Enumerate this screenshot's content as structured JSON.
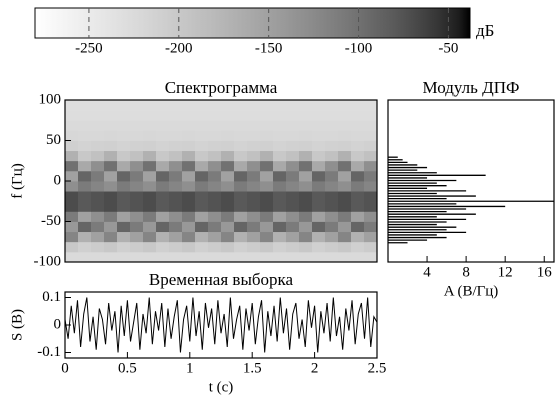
{
  "chart_data": [
    {
      "type": "colorbar",
      "colormap": "gray_r",
      "xlim": [
        -280,
        -38
      ],
      "xticks": [
        -250,
        -200,
        -150,
        -100,
        -50
      ],
      "label": "дБ"
    },
    {
      "type": "heatmap",
      "title": "Спектрограмма",
      "ylabel": "f (Гц)",
      "xlim": [
        0,
        2.5
      ],
      "ylim": [
        -100,
        100
      ],
      "yticks": [
        -100,
        -50,
        0,
        50,
        100
      ],
      "z": [
        [
          -225,
          -225,
          -225,
          -225,
          -225,
          -225,
          -225,
          -225,
          -225,
          -225,
          -225,
          -225,
          -225,
          -225,
          -225,
          -225,
          -225,
          -225,
          -225,
          -225,
          -225,
          -225,
          -225,
          -225
        ],
        [
          -200,
          -210,
          -205,
          -200,
          -210,
          -205,
          -200,
          -210,
          -205,
          -200,
          -210,
          -205,
          -200,
          -210,
          -205,
          -200,
          -210,
          -205,
          -200,
          -210,
          -205,
          -200,
          -210,
          -205
        ],
        [
          -120,
          -170,
          -150,
          -120,
          -170,
          -150,
          -120,
          -170,
          -150,
          -120,
          -170,
          -150,
          -120,
          -170,
          -150,
          -120,
          -170,
          -150,
          -120,
          -170,
          -150,
          -120,
          -170,
          -150
        ],
        [
          -140,
          -90,
          -110,
          -140,
          -90,
          -110,
          -140,
          -90,
          -110,
          -140,
          -90,
          -110,
          -140,
          -90,
          -110,
          -140,
          -90,
          -110,
          -140,
          -90,
          -110,
          -140,
          -90,
          -110
        ],
        [
          -110,
          -150,
          -130,
          -110,
          -150,
          -130,
          -110,
          -150,
          -130,
          -110,
          -150,
          -130,
          -110,
          -150,
          -130,
          -110,
          -150,
          -130,
          -110,
          -150,
          -130,
          -110,
          -150,
          -130
        ],
        [
          -70,
          -80,
          -75,
          -70,
          -80,
          -75,
          -70,
          -80,
          -75,
          -70,
          -80,
          -75,
          -70,
          -80,
          -75,
          -70,
          -80,
          -75,
          -70,
          -80,
          -75,
          -70,
          -80,
          -75
        ],
        [
          -70,
          -80,
          -75,
          -70,
          -80,
          -75,
          -70,
          -80,
          -75,
          -70,
          -80,
          -75,
          -70,
          -80,
          -75,
          -70,
          -80,
          -75,
          -70,
          -80,
          -75,
          -70,
          -80,
          -75
        ],
        [
          -130,
          -110,
          -120,
          -130,
          -110,
          -120,
          -130,
          -110,
          -120,
          -130,
          -110,
          -120,
          -130,
          -110,
          -120,
          -130,
          -110,
          -120,
          -130,
          -110,
          -120,
          -130,
          -110,
          -120
        ],
        [
          -150,
          -90,
          -110,
          -150,
          -90,
          -110,
          -150,
          -90,
          -110,
          -150,
          -90,
          -110,
          -150,
          -90,
          -110,
          -150,
          -90,
          -110,
          -150,
          -90,
          -110,
          -150,
          -90,
          -110
        ],
        [
          -100,
          -160,
          -130,
          -100,
          -160,
          -130,
          -100,
          -160,
          -130,
          -100,
          -160,
          -130,
          -100,
          -160,
          -130,
          -100,
          -160,
          -130,
          -100,
          -160,
          -130,
          -100,
          -160,
          -130
        ],
        [
          -170,
          -200,
          -190,
          -170,
          -200,
          -190,
          -170,
          -200,
          -190,
          -170,
          -200,
          -190,
          -170,
          -200,
          -190,
          -170,
          -200,
          -190,
          -170,
          -200,
          -190,
          -170,
          -200,
          -190
        ],
        [
          -210,
          -215,
          -212,
          -210,
          -215,
          -212,
          -210,
          -215,
          -212,
          -210,
          -215,
          -212,
          -210,
          -215,
          -212,
          -210,
          -215,
          -212,
          -210,
          -215,
          -212,
          -210,
          -215,
          -212
        ],
        [
          -220,
          -222,
          -221,
          -220,
          -222,
          -221,
          -220,
          -222,
          -221,
          -220,
          -222,
          -221,
          -220,
          -222,
          -221,
          -220,
          -222,
          -221,
          -220,
          -222,
          -221,
          -220,
          -222,
          -221
        ],
        [
          -225,
          -225,
          -225,
          -225,
          -225,
          -225,
          -225,
          -225,
          -225,
          -225,
          -225,
          -225,
          -225,
          -225,
          -225,
          -225,
          -225,
          -225,
          -225,
          -225,
          -225,
          -225,
          -225,
          -225
        ],
        [
          -228,
          -228,
          -228,
          -228,
          -228,
          -228,
          -228,
          -228,
          -228,
          -228,
          -228,
          -228,
          -228,
          -228,
          -228,
          -228,
          -228,
          -228,
          -228,
          -228,
          -228,
          -228,
          -228,
          -228
        ],
        [
          -230,
          -230,
          -230,
          -230,
          -230,
          -230,
          -230,
          -230,
          -230,
          -230,
          -230,
          -230,
          -230,
          -230,
          -230,
          -230,
          -230,
          -230,
          -230,
          -230,
          -230,
          -230,
          -230,
          -230
        ]
      ]
    },
    {
      "type": "stem",
      "title": "Модуль ДПФ",
      "xlabel": "A (В/Гц)",
      "xlim": [
        0,
        17
      ],
      "xticks": [
        4,
        8,
        12,
        16
      ],
      "ylim": [
        -100,
        100
      ],
      "color": "#000000",
      "f": [
        -76.2,
        -73,
        -69.8,
        -66.6,
        -63.4,
        -60.2,
        -57,
        -53.8,
        -50.6,
        -47.4,
        -44.2,
        -41,
        -37.8,
        -34.6,
        -31.4,
        -28.2,
        -25,
        -21.8,
        -18.6,
        -15.4,
        -12.2,
        -9,
        -5.8,
        -2.6,
        0.6,
        3.8,
        7,
        10.2,
        13.4,
        16.6,
        19.8,
        23,
        26.2,
        29.4
      ],
      "values": [
        2,
        4,
        6,
        5,
        8,
        6,
        7,
        5,
        6,
        8,
        5,
        9,
        6,
        8,
        12,
        7,
        17,
        6,
        9,
        5,
        8,
        4,
        6,
        5,
        7,
        4,
        10,
        5,
        3,
        4,
        3,
        2,
        1.5,
        1
      ]
    },
    {
      "type": "line",
      "title": "Временная выборка",
      "xlabel": "t (с)",
      "ylabel": "S (В)",
      "xlim": [
        0,
        2.5
      ],
      "ylim": [
        -0.12,
        0.12
      ],
      "xticks": [
        0,
        0.5,
        1,
        1.5,
        2,
        2.5
      ],
      "yticks": [
        -0.1,
        0,
        0.1
      ],
      "color": "#000000",
      "x": [
        0,
        0.025,
        0.05,
        0.075,
        0.1,
        0.125,
        0.15,
        0.175,
        0.2,
        0.225,
        0.25,
        0.275,
        0.3,
        0.325,
        0.35,
        0.375,
        0.4,
        0.425,
        0.45,
        0.475,
        0.5,
        0.525,
        0.55,
        0.575,
        0.6,
        0.625,
        0.65,
        0.675,
        0.7,
        0.725,
        0.75,
        0.775,
        0.8,
        0.825,
        0.85,
        0.875,
        0.9,
        0.925,
        0.95,
        0.975,
        1,
        1.025,
        1.05,
        1.075,
        1.1,
        1.125,
        1.15,
        1.175,
        1.2,
        1.225,
        1.25,
        1.275,
        1.3,
        1.325,
        1.35,
        1.375,
        1.4,
        1.425,
        1.45,
        1.475,
        1.5,
        1.525,
        1.55,
        1.575,
        1.6,
        1.625,
        1.65,
        1.675,
        1.7,
        1.725,
        1.75,
        1.775,
        1.8,
        1.825,
        1.85,
        1.875,
        1.9,
        1.925,
        1.95,
        1.975,
        2,
        2.025,
        2.05,
        2.075,
        2.1,
        2.125,
        2.15,
        2.175,
        2.2,
        2.225,
        2.25,
        2.275,
        2.3,
        2.325,
        2.35,
        2.375,
        2.4,
        2.425,
        2.45,
        2.475,
        2.5
      ],
      "values": [
        0.02,
        -0.05,
        0.07,
        -0.03,
        0.09,
        -0.08,
        0.04,
        0.1,
        -0.06,
        0.03,
        -0.09,
        0.06,
        0.02,
        -0.07,
        0.08,
        -0.02,
        0.05,
        -0.1,
        0.07,
        -0.04,
        0.09,
        -0.06,
        0.01,
        0.08,
        -0.09,
        0.04,
        -0.03,
        0.1,
        -0.07,
        0.05,
        -0.02,
        0.08,
        -0.08,
        0.06,
        -0.05,
        0.03,
        0.09,
        -0.1,
        0.02,
        0.07,
        -0.06,
        0.1,
        -0.04,
        0.05,
        -0.09,
        0.08,
        -0.01,
        0.06,
        -0.07,
        0.09,
        -0.03,
        0.04,
        -0.08,
        0.1,
        -0.05,
        0.02,
        0.07,
        -0.09,
        0.06,
        -0.02,
        0.08,
        -0.07,
        0.03,
        0.09,
        -0.1,
        0.05,
        -0.04,
        0.07,
        -0.06,
        0.1,
        -0.03,
        0.06,
        -0.09,
        0.04,
        0.08,
        -0.05,
        0.02,
        -0.08,
        0.09,
        -0.01,
        0.07,
        -0.1,
        0.05,
        -0.03,
        0.08,
        -0.06,
        0.1,
        -0.04,
        0.03,
        -0.09,
        0.06,
        -0.02,
        0.09,
        -0.07,
        0.04,
        0.08,
        -0.05,
        0.1,
        -0.08,
        0.03,
        0.01
      ]
    }
  ]
}
